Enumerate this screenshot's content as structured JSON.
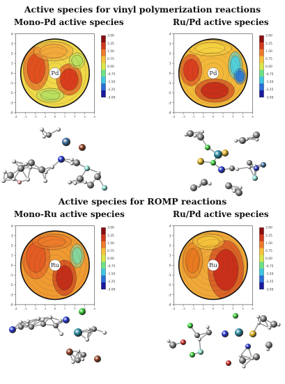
{
  "sections": [
    {
      "title": "Active species for vinyl polymerization reactions"
    },
    {
      "title": "Active species for ROMP reactions"
    }
  ],
  "panels": [
    {
      "title": "Mono-Pd active species",
      "metal": "Pd"
    },
    {
      "title": "Ru/Pd active species",
      "metal": "Pd"
    },
    {
      "title": "Mono-Ru active species",
      "metal": "Ru"
    },
    {
      "title": "Ru/Pd active species",
      "metal": "Ru"
    }
  ],
  "axis": {
    "x_ticks": [
      "-4",
      "-3",
      "-2",
      "-1",
      "0",
      "1",
      "2",
      "3",
      "4"
    ],
    "y_ticks": [
      "4",
      "3",
      "2",
      "1",
      "0",
      "-1",
      "-2",
      "-3",
      "-4"
    ]
  },
  "colorbar": {
    "ticks": [
      "3.00",
      "2.25",
      "1.50",
      "0.75",
      "0.00",
      "-0.75",
      "-1.50",
      "-2.25",
      "-3.00"
    ]
  }
}
